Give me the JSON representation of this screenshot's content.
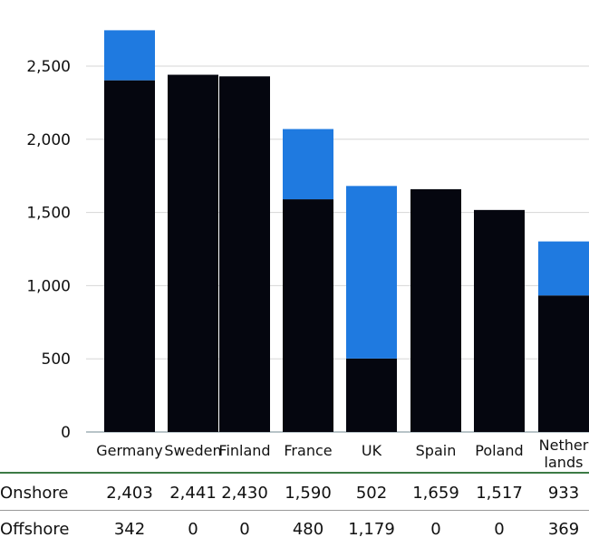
{
  "chart_data": {
    "type": "bar",
    "stacked": true,
    "categories": [
      "Germany",
      "Sweden",
      "Finland",
      "France",
      "UK",
      "Spain",
      "Poland",
      "Nether lands"
    ],
    "category_lines": [
      [
        "Germany"
      ],
      [
        "Sweden"
      ],
      [
        "Finland"
      ],
      [
        "France"
      ],
      [
        "UK"
      ],
      [
        "Spain"
      ],
      [
        "Poland"
      ],
      [
        "Nether",
        "lands"
      ]
    ],
    "series": [
      {
        "name": "Onshore",
        "color": "#05060f",
        "values": [
          2403,
          2441,
          2430,
          1590,
          502,
          1659,
          1517,
          933
        ],
        "labels": [
          "2,403",
          "2,441",
          "2,430",
          "1,590",
          "502",
          "1,659",
          "1,517",
          "933"
        ]
      },
      {
        "name": "Offshore",
        "color": "#1f7ae0",
        "values": [
          342,
          0,
          0,
          480,
          1179,
          0,
          0,
          369
        ],
        "labels": [
          "342",
          "0",
          "0",
          "480",
          "1,179",
          "0",
          "0",
          "369"
        ]
      }
    ],
    "yticks": [
      0,
      500,
      1000,
      1500,
      2000,
      2500
    ],
    "ytick_labels": [
      "0",
      "500",
      "1,000",
      "1,500",
      "2,000",
      "2,500"
    ],
    "ylim": [
      0,
      2750
    ],
    "grid": true,
    "legend": "data table below chart",
    "xlabel": "",
    "ylabel": ""
  }
}
